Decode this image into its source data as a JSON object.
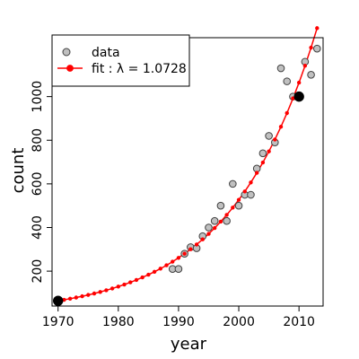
{
  "chart_data": {
    "type": "scatter",
    "xlabel": "year",
    "ylabel": "count",
    "xlim": [
      1969,
      2014
    ],
    "ylim": [
      40,
      1270
    ],
    "x_ticks": [
      1970,
      1980,
      1990,
      2000,
      2010
    ],
    "y_ticks": [
      200,
      400,
      600,
      800,
      1000
    ],
    "grid": false,
    "legend_position": "top-left",
    "legend": {
      "data_label": "data",
      "fit_label": "fit : λ = 1.0728"
    },
    "colors": {
      "data_fill": "#c0c0c0",
      "data_stroke": "#404040",
      "fit": "#ff0000",
      "highlight": "#000000"
    },
    "series": [
      {
        "name": "data",
        "kind": "scatter",
        "x": [
          1989,
          1990,
          1991,
          1992,
          1993,
          1994,
          1995,
          1996,
          1997,
          1998,
          1999,
          2000,
          2001,
          2002,
          2003,
          2004,
          2005,
          2006,
          2007,
          2008,
          2009,
          2010,
          2011,
          2012,
          2013
        ],
        "y": [
          210,
          210,
          280,
          310,
          305,
          360,
          400,
          430,
          500,
          430,
          600,
          500,
          550,
          550,
          670,
          740,
          820,
          790,
          1130,
          1070,
          1000,
          1000,
          1160,
          1100,
          1220
        ]
      },
      {
        "name": "fit : λ = 1.0728",
        "kind": "line",
        "lambda": 1.0728,
        "x0": 1970,
        "y0": 64,
        "x_start": 1970,
        "x_end": 2013,
        "step": 1
      },
      {
        "kind": "highlight",
        "x": [
          1970,
          2010
        ],
        "y": [
          64,
          1000
        ]
      }
    ]
  }
}
